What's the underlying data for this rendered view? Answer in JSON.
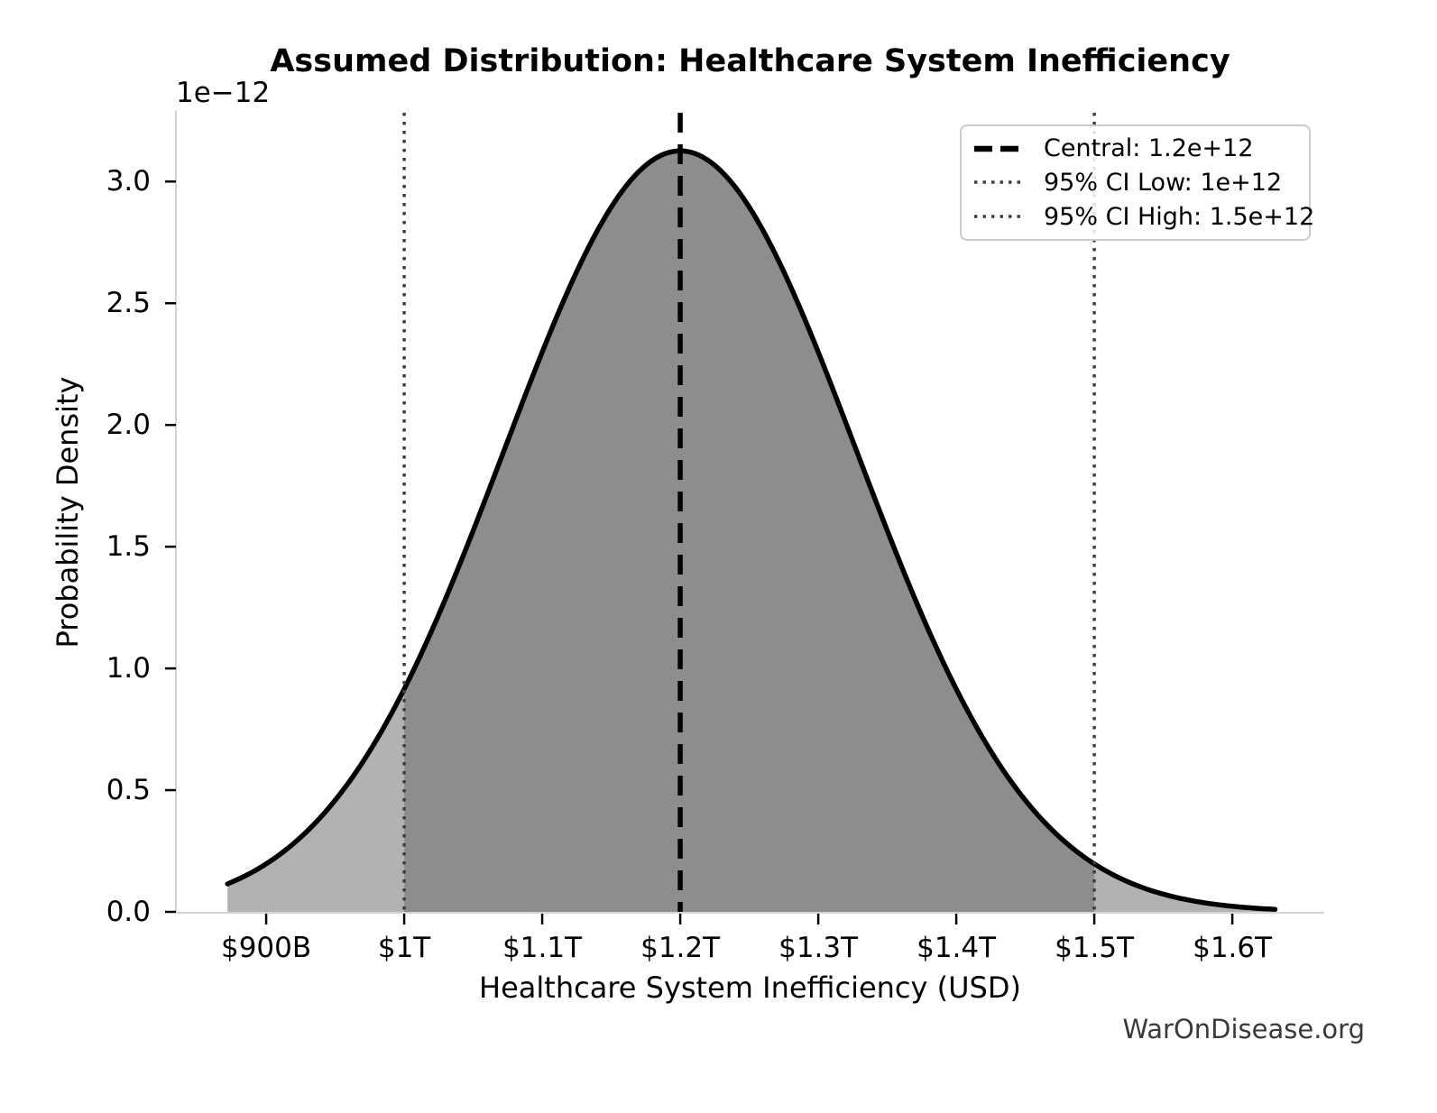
{
  "chart_data": {
    "type": "area",
    "title": "Assumed Distribution: Healthcare System Inefficiency",
    "xlabel": "Healthcare System Inefficiency (USD)",
    "ylabel": "Probability Density",
    "y_axis_offset_label": "1e−12",
    "watermark": "WarOnDisease.org",
    "distribution": {
      "family": "normal",
      "mean": 1200000000000.0,
      "sigma": 127600000000.0,
      "peak_density": 3.126e-12,
      "curve_range": [
        872000000000.0,
        1631000000000.0
      ]
    },
    "markers": {
      "central": {
        "value": 1200000000000.0,
        "line_style": "dashed",
        "color": "#000000"
      },
      "ci_low": {
        "value": 1000000000000.0,
        "line_style": "dotted",
        "color": "#3f3f3f"
      },
      "ci_high": {
        "value": 1500000000000.0,
        "line_style": "dotted",
        "color": "#3f3f3f"
      }
    },
    "ci_fill_range": [
      1000000000000.0,
      1500000000000.0
    ],
    "legend": [
      {
        "label": "Central: 1.2e+12",
        "line_style": "dashed",
        "color": "#000000"
      },
      {
        "label": "95% CI Low: 1e+12",
        "line_style": "dotted",
        "color": "#3f3f3f"
      },
      {
        "label": "95% CI High: 1.5e+12",
        "line_style": "dotted",
        "color": "#3f3f3f"
      }
    ],
    "x_ticks": [
      {
        "value": 900000000000.0,
        "label": "$900B"
      },
      {
        "value": 1000000000000.0,
        "label": "$1T"
      },
      {
        "value": 1100000000000.0,
        "label": "$1.1T"
      },
      {
        "value": 1200000000000.0,
        "label": "$1.2T"
      },
      {
        "value": 1300000000000.0,
        "label": "$1.3T"
      },
      {
        "value": 1400000000000.0,
        "label": "$1.4T"
      },
      {
        "value": 1500000000000.0,
        "label": "$1.5T"
      },
      {
        "value": 1600000000000.0,
        "label": "$1.6T"
      }
    ],
    "y_ticks": [
      {
        "value": 0.0,
        "label": "0.0"
      },
      {
        "value": 5e-13,
        "label": "0.5"
      },
      {
        "value": 1e-12,
        "label": "1.0"
      },
      {
        "value": 1.5e-12,
        "label": "1.5"
      },
      {
        "value": 2e-12,
        "label": "2.0"
      },
      {
        "value": 2.5e-12,
        "label": "2.5"
      },
      {
        "value": 3e-12,
        "label": "3.0"
      }
    ],
    "axes": {
      "x_min": 834600000000.0,
      "x_max": 1666600000000.0,
      "y_min": 0,
      "y_max": 3.29e-12,
      "grid": false,
      "legend_position": "upper right"
    },
    "colors": {
      "curve": "#000000",
      "fill": "#b2b2b2",
      "fill_ci": "#8d8d8d",
      "spine": "#d4d4d4",
      "tick": "#000000",
      "watermark": "#3a3a3a"
    }
  }
}
